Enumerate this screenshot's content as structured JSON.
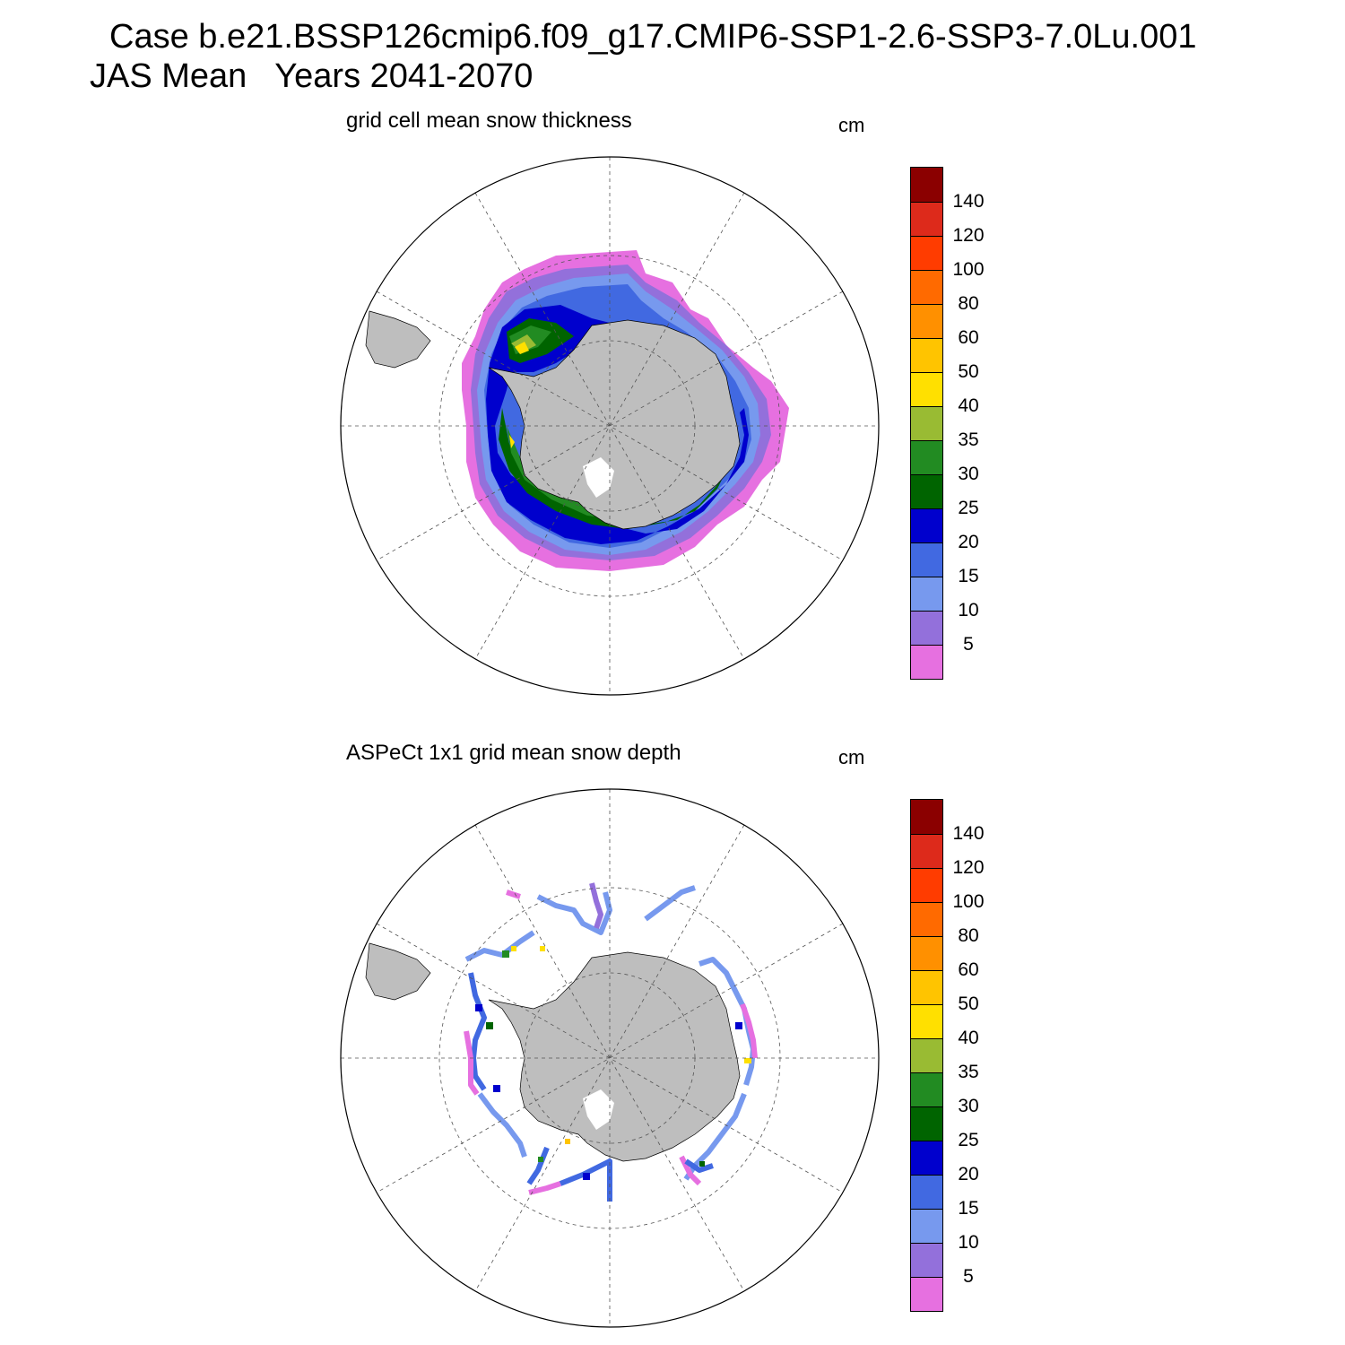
{
  "figure": {
    "case_title": "Case b.e21.BSSP126cmip6.f09_g17.CMIP6-SSP1-2.6-SSP3-7.0Lu.001",
    "season_title": "JAS Mean   Years 2041-2070"
  },
  "colorbar": {
    "labels": [
      "140",
      "120",
      "100",
      "80",
      "60",
      "50",
      "40",
      "35",
      "30",
      "25",
      "20",
      "15",
      "10",
      "5"
    ],
    "colors": [
      "#8b0000",
      "#dd2a1b",
      "#ff3c00",
      "#ff6a00",
      "#ff9000",
      "#ffc400",
      "#ffe000",
      "#99bb33",
      "#228b22",
      "#006400",
      "#0000cd",
      "#4169e1",
      "#7799ee",
      "#9370db",
      "#e670e0"
    ]
  },
  "panels": [
    {
      "title": "grid cell mean snow thickness",
      "units": "cm"
    },
    {
      "title": "ASPeCt 1x1 grid mean snow depth",
      "units": "cm"
    }
  ],
  "map_colors": {
    "land": "#bebebe",
    "ocean": "#ffffff",
    "grid": "#555555"
  }
}
